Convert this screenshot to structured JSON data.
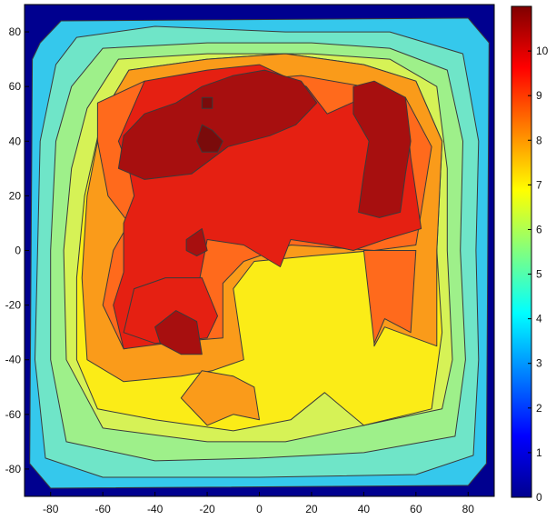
{
  "chart_data": {
    "type": "heatmap",
    "subtype": "filled-contour",
    "title": "",
    "xlabel": "",
    "ylabel": "",
    "xlim": [
      -90,
      90
    ],
    "ylim": [
      -90,
      90
    ],
    "x_ticks": [
      -80,
      -60,
      -40,
      -20,
      0,
      20,
      40,
      60,
      80
    ],
    "y_ticks": [
      80,
      60,
      40,
      20,
      0,
      -20,
      -40,
      -60,
      -80
    ],
    "colorbar": {
      "range": [
        0,
        11
      ],
      "ticks": [
        10,
        9,
        8,
        7,
        6,
        5,
        4,
        3,
        2,
        1,
        0
      ],
      "colormap": "jet",
      "colors": [
        "#00008f",
        "#0000ff",
        "#0080ff",
        "#00ffff",
        "#80ff80",
        "#ffff00",
        "#ff8000",
        "#ff0000",
        "#800000"
      ]
    },
    "contour_levels": [
      {
        "level": 2,
        "color": "#35c8ec",
        "regions": [
          [
            [
              -84,
              76
            ],
            [
              -76,
              84
            ],
            [
              80,
              85
            ],
            [
              88,
              76
            ],
            [
              87,
              -78
            ],
            [
              80,
              -86
            ],
            [
              -80,
              -87
            ],
            [
              -88,
              -78
            ],
            [
              -87,
              70
            ]
          ]
        ]
      },
      {
        "level": 3,
        "color": "#6fe5c8",
        "regions": [
          [
            [
              -78,
              68
            ],
            [
              -70,
              78
            ],
            [
              -40,
              82
            ],
            [
              10,
              80
            ],
            [
              50,
              80
            ],
            [
              78,
              72
            ],
            [
              84,
              40
            ],
            [
              83,
              0
            ],
            [
              84,
              -40
            ],
            [
              82,
              -75
            ],
            [
              60,
              -82
            ],
            [
              0,
              -83
            ],
            [
              -60,
              -83
            ],
            [
              -82,
              -76
            ],
            [
              -86,
              -40
            ],
            [
              -85,
              0
            ],
            [
              -84,
              40
            ]
          ]
        ]
      },
      {
        "level": 4,
        "color": "#9ef08a",
        "regions": [
          [
            [
              -72,
              60
            ],
            [
              -60,
              74
            ],
            [
              -20,
              76
            ],
            [
              20,
              76
            ],
            [
              50,
              74
            ],
            [
              72,
              66
            ],
            [
              78,
              40
            ],
            [
              77,
              0
            ],
            [
              79,
              -40
            ],
            [
              75,
              -68
            ],
            [
              40,
              -74
            ],
            [
              0,
              -76
            ],
            [
              -40,
              -77
            ],
            [
              -74,
              -70
            ],
            [
              -80,
              -40
            ],
            [
              -80,
              0
            ],
            [
              -78,
              40
            ]
          ]
        ]
      },
      {
        "level": 5,
        "color": "#d6f256",
        "regions": [
          [
            [
              -66,
              52
            ],
            [
              -54,
              70
            ],
            [
              -20,
              72
            ],
            [
              20,
              72
            ],
            [
              50,
              70
            ],
            [
              68,
              60
            ],
            [
              72,
              30
            ],
            [
              72,
              0
            ],
            [
              74,
              -40
            ],
            [
              70,
              -58
            ],
            [
              40,
              -64
            ],
            [
              10,
              -70
            ],
            [
              -20,
              -70
            ],
            [
              -60,
              -65
            ],
            [
              -74,
              -40
            ],
            [
              -75,
              0
            ],
            [
              -72,
              30
            ]
          ]
        ]
      },
      {
        "level": 6,
        "color": "#fbec17",
        "regions": [
          [
            [
              -60,
              50
            ],
            [
              -50,
              66
            ],
            [
              -20,
              70
            ],
            [
              10,
              72
            ],
            [
              40,
              68
            ],
            [
              60,
              62
            ],
            [
              70,
              40
            ],
            [
              68,
              0
            ],
            [
              70,
              -30
            ],
            [
              66,
              -58
            ],
            [
              40,
              -64
            ],
            [
              25,
              -52
            ],
            [
              12,
              -62
            ],
            [
              -10,
              -66
            ],
            [
              -40,
              -62
            ],
            [
              -62,
              -58
            ],
            [
              -70,
              -40
            ],
            [
              -70,
              -10
            ],
            [
              -67,
              20
            ]
          ]
        ]
      },
      {
        "level": 7,
        "color": "#fa9b1a",
        "regions": [
          [
            [
              -60,
              50
            ],
            [
              -50,
              66
            ],
            [
              -20,
              70
            ],
            [
              10,
              72
            ],
            [
              40,
              68
            ],
            [
              60,
              62
            ],
            [
              70,
              40
            ],
            [
              68,
              0
            ],
            [
              68,
              -35
            ],
            [
              48,
              -28
            ],
            [
              44,
              -35
            ],
            [
              44,
              0
            ],
            [
              20,
              -2
            ],
            [
              -2,
              -4
            ],
            [
              -10,
              -14
            ],
            [
              -6,
              -40
            ],
            [
              -18,
              -44
            ],
            [
              -30,
              -46
            ],
            [
              -52,
              -48
            ],
            [
              -66,
              -40
            ],
            [
              -68,
              -10
            ],
            [
              -66,
              20
            ]
          ],
          [
            [
              -30,
              -54
            ],
            [
              -20,
              -64
            ],
            [
              -10,
              -60
            ],
            [
              0,
              -62
            ],
            [
              -2,
              -50
            ],
            [
              -10,
              -46
            ],
            [
              -22,
              -44
            ]
          ]
        ]
      },
      {
        "level": 8,
        "color": "#ff6a1c",
        "regions": [
          [
            [
              -62,
              54
            ],
            [
              -44,
              62
            ],
            [
              -10,
              62
            ],
            [
              16,
              64
            ],
            [
              40,
              60
            ],
            [
              56,
              56
            ],
            [
              66,
              38
            ],
            [
              60,
              2
            ],
            [
              44,
              0
            ],
            [
              12,
              2
            ],
            [
              -6,
              -4
            ],
            [
              -14,
              -12
            ],
            [
              -14,
              -32
            ],
            [
              -40,
              -34
            ],
            [
              -52,
              -36
            ],
            [
              -60,
              -20
            ],
            [
              -56,
              0
            ],
            [
              -50,
              10
            ],
            [
              -58,
              20
            ],
            [
              -62,
              40
            ]
          ],
          [
            [
              40,
              0
            ],
            [
              60,
              0
            ],
            [
              58,
              -30
            ],
            [
              48,
              -25
            ],
            [
              44,
              -34
            ]
          ]
        ]
      },
      {
        "level": 9,
        "color": "#e52012",
        "regions": [
          [
            [
              -54,
              40
            ],
            [
              -44,
              62
            ],
            [
              -20,
              66
            ],
            [
              0,
              68
            ],
            [
              18,
              60
            ],
            [
              26,
              50
            ],
            [
              40,
              56
            ],
            [
              56,
              54
            ],
            [
              58,
              34
            ],
            [
              62,
              8
            ],
            [
              48,
              4
            ],
            [
              36,
              0
            ],
            [
              26,
              2
            ],
            [
              12,
              4
            ],
            [
              8,
              -6
            ],
            [
              -6,
              2
            ],
            [
              -20,
              4
            ],
            [
              -24,
              -16
            ],
            [
              -30,
              -30
            ],
            [
              -36,
              -34
            ],
            [
              -52,
              -36
            ],
            [
              -56,
              -20
            ],
            [
              -52,
              -8
            ],
            [
              -52,
              10
            ],
            [
              -48,
              20
            ],
            [
              -50,
              30
            ]
          ],
          [
            [
              -36,
              -10
            ],
            [
              -22,
              -10
            ],
            [
              -16,
              -24
            ],
            [
              -20,
              -32
            ],
            [
              -40,
              -34
            ],
            [
              -52,
              -30
            ],
            [
              -48,
              -14
            ]
          ]
        ]
      },
      {
        "level": 10,
        "color": "#a70f0f",
        "regions": [
          [
            [
              -52,
              42
            ],
            [
              -44,
              50
            ],
            [
              -32,
              54
            ],
            [
              -22,
              60
            ],
            [
              -10,
              64
            ],
            [
              2,
              66
            ],
            [
              16,
              62
            ],
            [
              22,
              54
            ],
            [
              14,
              46
            ],
            [
              4,
              42
            ],
            [
              -12,
              38
            ],
            [
              -26,
              28
            ],
            [
              -44,
              26
            ],
            [
              -54,
              30
            ]
          ],
          [
            [
              36,
              60
            ],
            [
              44,
              62
            ],
            [
              56,
              56
            ],
            [
              58,
              40
            ],
            [
              56,
              28
            ],
            [
              54,
              14
            ],
            [
              46,
              12
            ],
            [
              38,
              14
            ],
            [
              40,
              28
            ],
            [
              42,
              40
            ],
            [
              36,
              50
            ]
          ],
          [
            [
              -40,
              -28
            ],
            [
              -32,
              -22
            ],
            [
              -24,
              -26
            ],
            [
              -22,
              -38
            ],
            [
              -30,
              -38
            ],
            [
              -38,
              -34
            ]
          ],
          [
            [
              -28,
              4
            ],
            [
              -22,
              8
            ],
            [
              -20,
              0
            ],
            [
              -24,
              -2
            ],
            [
              -28,
              0
            ]
          ]
        ]
      },
      {
        "level": 10.8,
        "color": "#7a0b0b",
        "regions": [
          [
            [
              -22,
              46
            ],
            [
              -18,
              44
            ],
            [
              -14,
              40
            ],
            [
              -16,
              36
            ],
            [
              -22,
              36
            ],
            [
              -24,
              40
            ]
          ],
          [
            [
              -22,
              56
            ],
            [
              -18,
              56
            ],
            [
              -18,
              52
            ],
            [
              -22,
              52
            ]
          ]
        ]
      }
    ]
  }
}
